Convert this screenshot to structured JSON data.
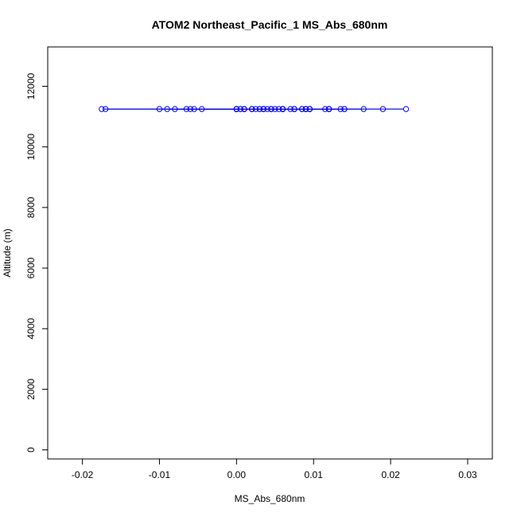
{
  "chart_data": {
    "type": "scatter",
    "title": "ATOM2 Northeast_Pacific_1 MS_Abs_680nm",
    "xlabel": "MS_Abs_680nm",
    "ylabel": "Altitude (m)",
    "xlim": [
      -0.0245,
      0.0332
    ],
    "ylim": [
      -300,
      13300
    ],
    "x_ticks": [
      -0.02,
      -0.01,
      0.0,
      0.01,
      0.02,
      0.03
    ],
    "x_tick_labels": [
      "-0.02",
      "-0.01",
      "0.00",
      "0.01",
      "0.02",
      "0.03"
    ],
    "y_ticks": [
      0,
      2000,
      4000,
      6000,
      8000,
      10000,
      12000
    ],
    "y_tick_labels": [
      "0",
      "2000",
      "4000",
      "6000",
      "8000",
      "10000",
      "12000"
    ],
    "grid": false,
    "legend": "none",
    "connected": true,
    "color": "#0000ff",
    "series": [
      {
        "x": [
          0.0,
          0.0,
          0.0,
          0.001,
          0.002,
          0.0,
          -0.0065,
          0.001,
          0.002,
          0.0005,
          0.004,
          -0.008,
          0.009,
          0.006,
          0.0085,
          0.0055,
          0.0005,
          -0.0175,
          0.0035,
          0.006,
          0.001,
          0.006,
          -0.01,
          0.014,
          0.009,
          0.001,
          0.005,
          0.014,
          0.012,
          0.0085,
          0.0035,
          -0.009,
          0.0045,
          0.006,
          0.0075,
          0.012,
          0.022,
          0.019,
          0.0095,
          0.0045,
          -0.006,
          0.0095,
          0.0075,
          0.009,
          0.0,
          0.0025,
          -0.0055,
          0.012,
          0.0135,
          0.007,
          0.0035,
          0.006,
          0.0095,
          0.003,
          -0.017,
          0.0095,
          0.009,
          0.0165,
          0.009,
          0.006,
          0.0045,
          0.0035,
          -0.0045,
          0.0115,
          0.006,
          0.0075,
          0.012,
          0.002,
          0.003
        ],
        "y": [
          11250,
          11250,
          11250,
          11250,
          11250,
          11250,
          11250,
          11250,
          11250,
          11250,
          11250,
          11250,
          11250,
          11250,
          11250,
          11250,
          11250,
          11250,
          11250,
          11250,
          11250,
          11250,
          11250,
          11250,
          11250,
          11250,
          11250,
          11250,
          11250,
          11250,
          11250,
          11250,
          11250,
          11250,
          11250,
          11250,
          11250,
          11250,
          11250,
          11250,
          11250,
          11250,
          11250,
          11250,
          11250,
          11250,
          11250,
          11250,
          11250,
          11250,
          11250,
          11250,
          11250,
          11250,
          11250,
          11250,
          11250,
          11250,
          11250,
          11250,
          11250,
          11250,
          11250,
          11250,
          11250,
          11250,
          11250,
          11250,
          11250
        ]
      }
    ]
  }
}
